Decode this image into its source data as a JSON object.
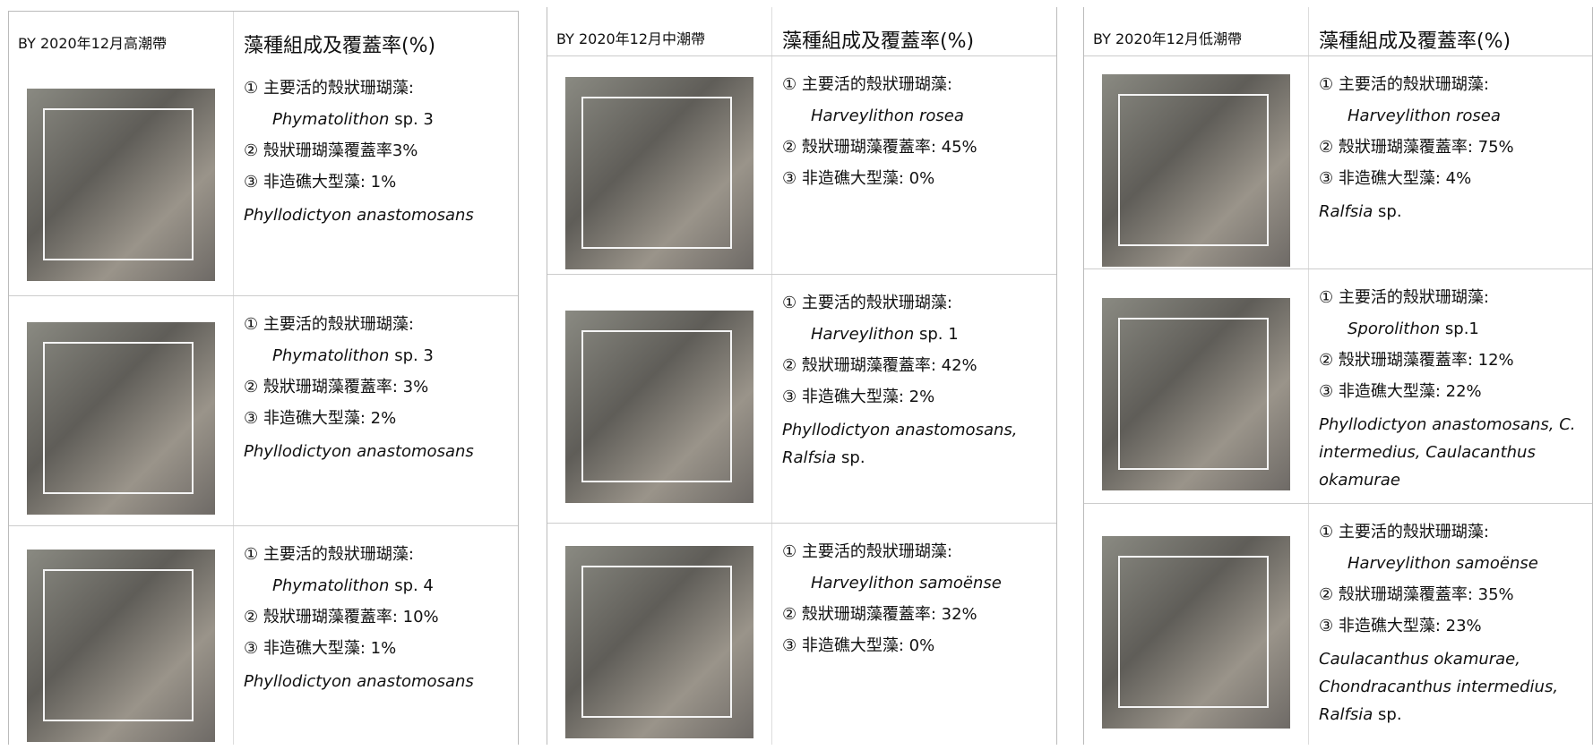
{
  "panels": [
    {
      "zone": "BY 2020年12月高潮帶",
      "title": "藻種組成及覆蓋率(%)",
      "rows": [
        {
          "label": "① 主要活的殼狀珊瑚藻:",
          "species": {
            "italic": "Phymatolithon",
            "plain": "sp. 3"
          },
          "coverage": "② 殼狀珊瑚藻覆蓋率3%",
          "macro": "③ 非造礁大型藻: 1%",
          "others": {
            "italic": "Phyllodictyon anastomosans"
          }
        },
        {
          "label": "① 主要活的殼狀珊瑚藻:",
          "species": {
            "italic": "Phymatolithon",
            "plain": "sp. 3"
          },
          "coverage": "② 殼狀珊瑚藻覆蓋率: 3%",
          "macro": "③ 非造礁大型藻: 2%",
          "others": {
            "italic": "Phyllodictyon anastomosans"
          }
        },
        {
          "label": "① 主要活的殼狀珊瑚藻:",
          "species": {
            "italic": "Phymatolithon",
            "plain": "sp. 4"
          },
          "coverage": "② 殼狀珊瑚藻覆蓋率: 10%",
          "macro": "③ 非造礁大型藻: 1%",
          "others": {
            "italic": "Phyllodictyon anastomosans"
          }
        }
      ]
    },
    {
      "zone": "BY 2020年12月中潮帶",
      "title": "藻種組成及覆蓋率(%)",
      "rows": [
        {
          "label": "① 主要活的殼狀珊瑚藻:",
          "species": {
            "italic": "Harveylithon rosea"
          },
          "coverage": "② 殼狀珊瑚藻覆蓋率: 45%",
          "macro": "③ 非造礁大型藻: 0%"
        },
        {
          "label": "① 主要活的殼狀珊瑚藻:",
          "species": {
            "italic": "Harveylithon",
            "plain": "sp. 1"
          },
          "coverage": "② 殼狀珊瑚藻覆蓋率: 42%",
          "macro": "③ 非造礁大型藻: 2%",
          "others": {
            "italic": "Phyllodictyon anastomosans, Ralfsia",
            "plain": "sp."
          }
        },
        {
          "label": "① 主要活的殼狀珊瑚藻:",
          "species": {
            "italic": "Harveylithon samoënse"
          },
          "coverage": "② 殼狀珊瑚藻覆蓋率: 32%",
          "macro": "③ 非造礁大型藻: 0%"
        }
      ]
    },
    {
      "zone": "BY 2020年12月低潮帶",
      "title": "藻種組成及覆蓋率(%)",
      "rows": [
        {
          "label": "① 主要活的殼狀珊瑚藻:",
          "species": {
            "italic": "Harveylithon rosea"
          },
          "coverage": "② 殼狀珊瑚藻覆蓋率: 75%",
          "macro": "③ 非造礁大型藻: 4%",
          "others": {
            "italic": "Ralfsia",
            "plain": "sp."
          }
        },
        {
          "label": "① 主要活的殼狀珊瑚藻:",
          "species": {
            "italic": "Sporolithon",
            "plain": "sp.1"
          },
          "coverage": "② 殼狀珊瑚藻覆蓋率: 12%",
          "macro": "③ 非造礁大型藻: 22%",
          "others": {
            "italic": "Phyllodictyon anastomosans, C. intermedius, Caulacanthus okamurae"
          }
        },
        {
          "label": "① 主要活的殼狀珊瑚藻:",
          "species": {
            "italic": "Harveylithon samoënse"
          },
          "coverage": "② 殼狀珊瑚藻覆蓋率: 35%",
          "macro": "③ 非造礁大型藻: 23%",
          "others": {
            "italic": "Caulacanthus okamurae, Chondracanthus intermedius, Ralfsia",
            "plain": "sp."
          }
        }
      ]
    }
  ]
}
